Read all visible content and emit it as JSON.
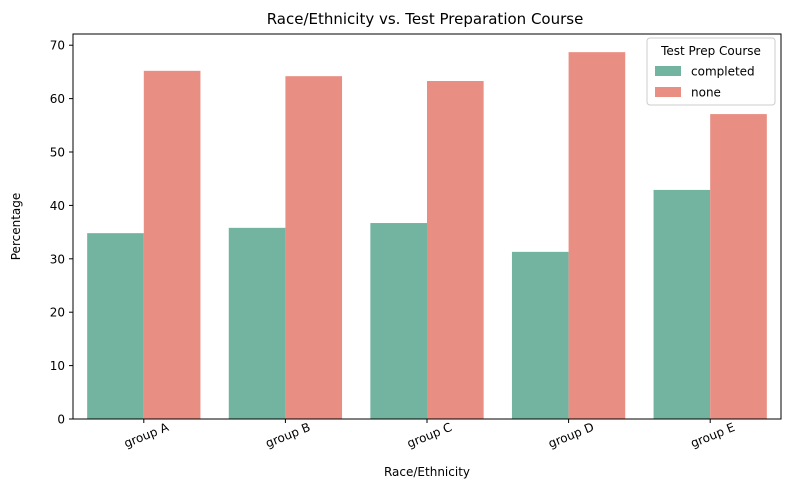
{
  "chart_data": {
    "type": "bar",
    "title": "Race/Ethnicity vs. Test Preparation Course",
    "xlabel": "Race/Ethnicity",
    "ylabel": "Percentage",
    "categories": [
      "group A",
      "group B",
      "group C",
      "group D",
      "group E"
    ],
    "series": [
      {
        "name": "completed",
        "color": "#73b4a0",
        "values": [
          34.8,
          35.8,
          36.7,
          31.3,
          42.9
        ]
      },
      {
        "name": "none",
        "color": "#e88e82",
        "values": [
          65.2,
          64.2,
          63.3,
          68.7,
          57.1
        ]
      }
    ],
    "ylim": [
      0,
      72.1
    ],
    "yticks": [
      0,
      10,
      20,
      30,
      40,
      50,
      60,
      70
    ],
    "grid": false,
    "legend": {
      "title": "Test Prep Course",
      "placement": "top-right"
    }
  }
}
